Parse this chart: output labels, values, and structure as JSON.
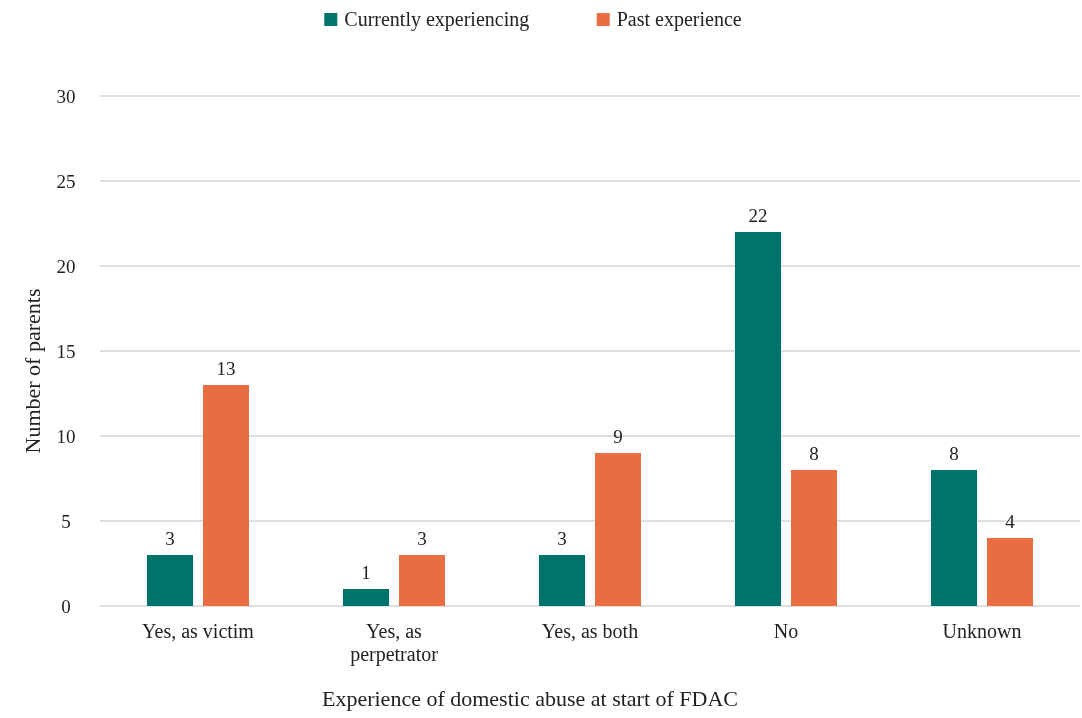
{
  "chart_data": {
    "type": "bar",
    "xlabel": "Experience of domestic abuse at start of FDAC",
    "ylabel": "Number of parents",
    "categories": [
      "Yes, as victim",
      "Yes, as perpetrator",
      "Yes, as both",
      "No",
      "Unknown"
    ],
    "series": [
      {
        "name": "Currently experiencing",
        "color": "#00736a",
        "values": [
          3,
          1,
          3,
          22,
          8
        ]
      },
      {
        "name": "Past experience",
        "color": "#e86d42",
        "values": [
          13,
          3,
          9,
          8,
          4
        ]
      }
    ],
    "ylim": [
      0,
      30
    ],
    "yticks": [
      0,
      5,
      10,
      15,
      20,
      25,
      30
    ],
    "grid": "y",
    "legend": "top",
    "data_labels": true
  }
}
